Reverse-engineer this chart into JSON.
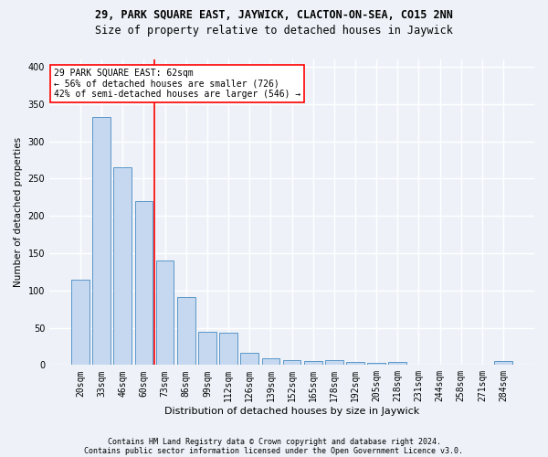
{
  "title": "29, PARK SQUARE EAST, JAYWICK, CLACTON-ON-SEA, CO15 2NN",
  "subtitle": "Size of property relative to detached houses in Jaywick",
  "xlabel": "Distribution of detached houses by size in Jaywick",
  "ylabel": "Number of detached properties",
  "categories": [
    "20sqm",
    "33sqm",
    "46sqm",
    "60sqm",
    "73sqm",
    "86sqm",
    "99sqm",
    "112sqm",
    "126sqm",
    "139sqm",
    "152sqm",
    "165sqm",
    "178sqm",
    "192sqm",
    "205sqm",
    "218sqm",
    "231sqm",
    "244sqm",
    "258sqm",
    "271sqm",
    "284sqm"
  ],
  "values": [
    114,
    333,
    265,
    220,
    140,
    91,
    45,
    43,
    16,
    9,
    7,
    5,
    7,
    4,
    3,
    4,
    0,
    0,
    0,
    0,
    5
  ],
  "bar_color": "#c5d8f0",
  "bar_edge_color": "#5a96c8",
  "vline_color": "red",
  "vline_index": 3.5,
  "annotation_text": "29 PARK SQUARE EAST: 62sqm\n← 56% of detached houses are smaller (726)\n42% of semi-detached houses are larger (546) →",
  "annotation_box_color": "white",
  "annotation_box_edge_color": "red",
  "ylim": [
    0,
    410
  ],
  "yticks": [
    0,
    50,
    100,
    150,
    200,
    250,
    300,
    350,
    400
  ],
  "footer_line1": "Contains HM Land Registry data © Crown copyright and database right 2024.",
  "footer_line2": "Contains public sector information licensed under the Open Government Licence v3.0.",
  "background_color": "#eef2f8",
  "grid_color": "white",
  "title_fontsize": 8.5,
  "subtitle_fontsize": 8.5,
  "xlabel_fontsize": 8,
  "ylabel_fontsize": 7.5,
  "tick_fontsize": 7,
  "annotation_fontsize": 7,
  "footer_fontsize": 6
}
